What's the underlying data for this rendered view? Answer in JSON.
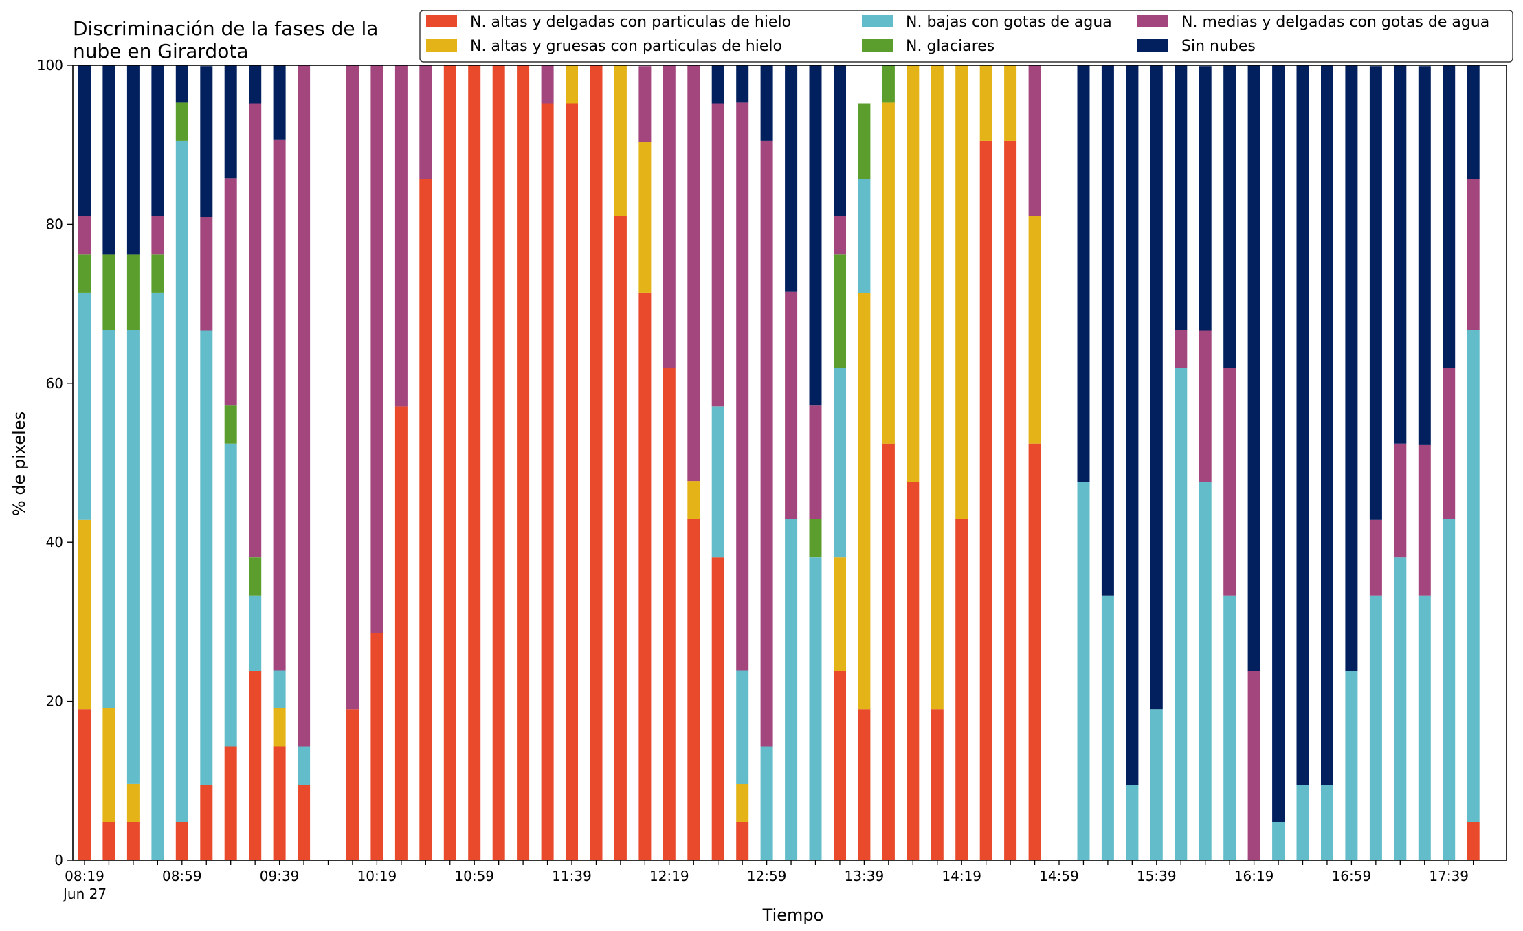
{
  "chart_data": {
    "type": "bar",
    "stacked": true,
    "title_lines": [
      "Discriminación de la fases de la",
      "nube en Girardota"
    ],
    "xlabel": "Tiempo",
    "ylabel": "% de pixeles",
    "ylim": [
      0,
      100
    ],
    "yticks": [
      0,
      20,
      40,
      60,
      80,
      100
    ],
    "grid": false,
    "legend_position": "top-right",
    "x_start": "08:19",
    "x_step_minutes": 10,
    "x_date_label": "Jun 27",
    "x_tick_labels": [
      "08:19",
      "08:59",
      "09:39",
      "10:19",
      "10:59",
      "11:39",
      "12:19",
      "12:59",
      "13:39",
      "14:19",
      "14:59",
      "15:39",
      "16:19",
      "16:59",
      "17:39"
    ],
    "categories": [
      "08:19",
      "08:29",
      "08:39",
      "08:49",
      "08:59",
      "09:09",
      "09:19",
      "09:29",
      "09:39",
      "09:49",
      "09:59",
      "10:09",
      "10:19",
      "10:29",
      "10:39",
      "10:49",
      "10:59",
      "11:09",
      "11:19",
      "11:29",
      "11:39",
      "11:49",
      "11:59",
      "12:09",
      "12:19",
      "12:29",
      "12:39",
      "12:49",
      "12:59",
      "13:09",
      "13:19",
      "13:29",
      "13:39",
      "13:49",
      "13:59",
      "14:09",
      "14:19",
      "14:29",
      "14:39",
      "14:49",
      "14:59",
      "15:09",
      "15:19",
      "15:29",
      "15:39",
      "15:49",
      "15:59",
      "16:09",
      "16:19",
      "16:29",
      "16:39",
      "16:49",
      "16:59",
      "17:09",
      "17:19",
      "17:29",
      "17:39",
      "17:49"
    ],
    "series": [
      {
        "name": "N. altas y delgadas con particulas de hielo",
        "color": "#e84a2b",
        "values": [
          19.0,
          4.8,
          4.8,
          0,
          4.8,
          9.5,
          14.3,
          23.8,
          14.3,
          9.5,
          0,
          19.0,
          28.6,
          57.1,
          85.7,
          100,
          100,
          100,
          100,
          95.2,
          95.2,
          100,
          81.0,
          71.4,
          61.9,
          42.9,
          38.1,
          4.8,
          0,
          0,
          0,
          23.8,
          19.0,
          52.4,
          47.6,
          19.0,
          42.9,
          90.5,
          90.5,
          52.4,
          0,
          0,
          0,
          0,
          0,
          0,
          0,
          0,
          0,
          0,
          0,
          0,
          0,
          0,
          0,
          0,
          0,
          4.8
        ]
      },
      {
        "name": "N. altas y gruesas con particulas de hielo",
        "color": "#e3b317",
        "values": [
          23.8,
          14.3,
          4.8,
          0,
          0,
          0,
          0,
          0,
          4.8,
          0,
          0,
          0,
          0,
          0,
          0,
          0,
          0,
          0,
          0,
          0,
          4.8,
          0,
          19.0,
          19.0,
          0,
          4.8,
          0,
          4.8,
          0,
          0,
          0,
          14.3,
          52.4,
          42.9,
          52.4,
          81.0,
          57.1,
          9.5,
          9.5,
          28.6,
          0,
          0,
          0,
          0,
          0,
          0,
          0,
          0,
          0,
          0,
          0,
          0,
          0,
          0,
          0,
          0,
          0,
          0
        ]
      },
      {
        "name": "N. bajas con gotas de agua",
        "color": "#63bcc9",
        "values": [
          28.6,
          47.6,
          57.1,
          71.4,
          85.7,
          57.1,
          38.1,
          9.5,
          4.8,
          4.8,
          0,
          0,
          0,
          0,
          0,
          0,
          0,
          0,
          0,
          0,
          0,
          0,
          0,
          0,
          0,
          0,
          19.0,
          14.3,
          14.3,
          42.9,
          38.1,
          23.8,
          14.3,
          0,
          0,
          0,
          0,
          0,
          0,
          0,
          0,
          47.6,
          33.3,
          9.5,
          19.0,
          61.9,
          47.6,
          33.3,
          0,
          4.8,
          9.5,
          9.5,
          23.8,
          33.3,
          38.1,
          33.3,
          42.9,
          61.9
        ]
      },
      {
        "name": "N. glaciares",
        "color": "#5b9e2d",
        "values": [
          4.8,
          9.5,
          9.5,
          4.8,
          4.8,
          0,
          4.8,
          4.8,
          0,
          0,
          0,
          0,
          0,
          0,
          0,
          0,
          0,
          0,
          0,
          0,
          0,
          0,
          0,
          0,
          0,
          0,
          0,
          0,
          0,
          0,
          4.8,
          14.3,
          9.5,
          4.8,
          0,
          0,
          0,
          0,
          0,
          0,
          0,
          0,
          0,
          0,
          0,
          0,
          0,
          0,
          0,
          0,
          0,
          0,
          0,
          0,
          0,
          0,
          0,
          0
        ]
      },
      {
        "name": "N. medias y delgadas con gotas de agua",
        "color": "#a3467e",
        "values": [
          4.8,
          0,
          0,
          4.8,
          0,
          14.3,
          28.6,
          57.1,
          66.7,
          85.7,
          0,
          81.0,
          71.4,
          42.9,
          14.3,
          0,
          0,
          0,
          0,
          4.8,
          0,
          0,
          0,
          9.5,
          38.1,
          52.4,
          38.1,
          71.4,
          76.2,
          28.6,
          14.3,
          4.8,
          0,
          0,
          0,
          0,
          0,
          0,
          0,
          19.0,
          0,
          0,
          0,
          0,
          0,
          4.8,
          19.0,
          28.6,
          23.8,
          0,
          0,
          0,
          0,
          9.5,
          14.3,
          19.0,
          19.0,
          19.0
        ]
      },
      {
        "name": "Sin nubes",
        "color": "#021f5e",
        "values": [
          19.0,
          23.8,
          23.8,
          19.0,
          4.8,
          19.0,
          14.3,
          4.8,
          9.5,
          0,
          0,
          0,
          0,
          0,
          0,
          0,
          0,
          0,
          0,
          0,
          0,
          0,
          0,
          0,
          0,
          0,
          4.8,
          4.8,
          9.5,
          28.6,
          42.9,
          19.0,
          0,
          0,
          0,
          0,
          0,
          0,
          0,
          0,
          0,
          52.4,
          66.7,
          90.5,
          81.0,
          33.3,
          33.3,
          38.1,
          76.2,
          95.2,
          90.5,
          90.5,
          76.2,
          57.1,
          47.6,
          47.6,
          38.1,
          14.3
        ]
      }
    ]
  }
}
